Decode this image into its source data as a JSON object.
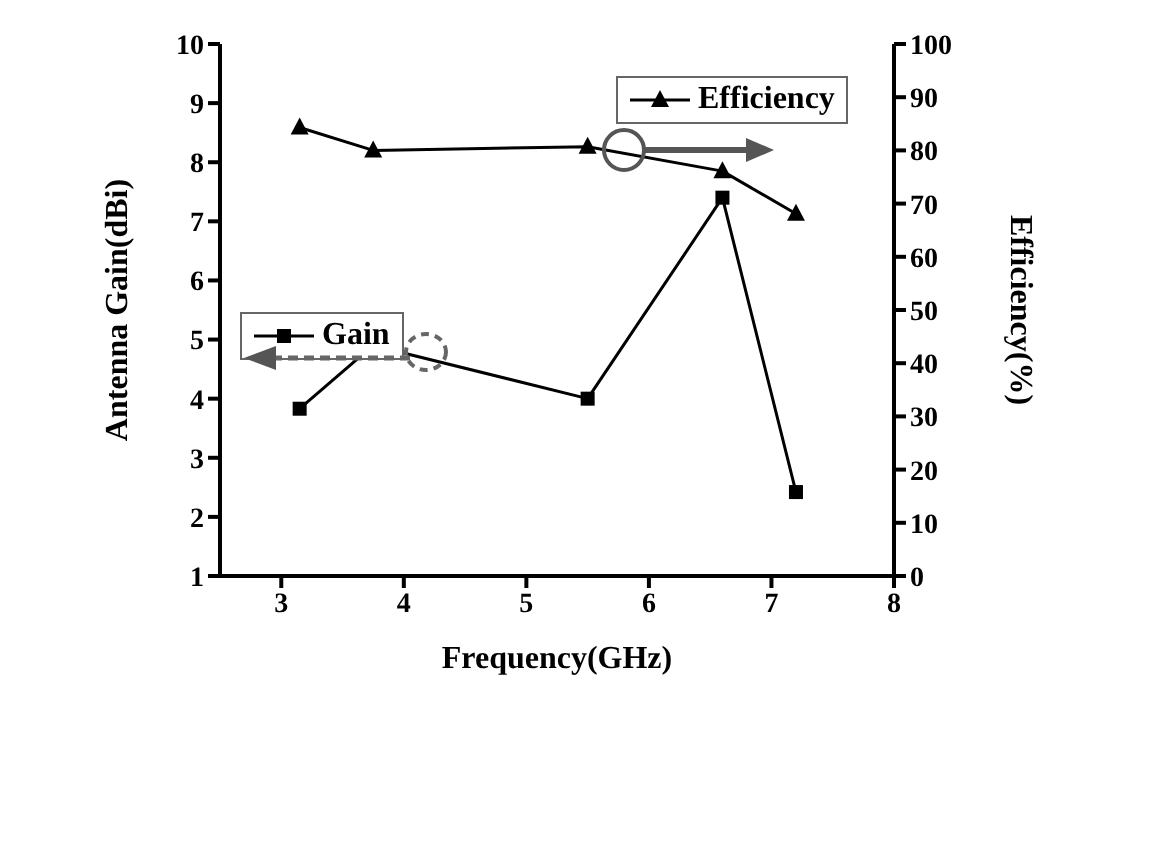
{
  "chart_data": {
    "type": "line",
    "xlabel": "Frequency(GHz)",
    "ylabel": "Antenna Gain(dBi)",
    "y2label": "Efficiency(%)",
    "x": [
      3.15,
      3.75,
      5.5,
      6.6,
      7.2
    ],
    "series": [
      {
        "name": "Gain",
        "color": "#000000",
        "marker": "square",
        "values": [
          3.83,
          4.9,
          4.0,
          7.4,
          2.42
        ]
      },
      {
        "name": "Efficiency",
        "color": "#000000",
        "marker": "triangle",
        "axis": "y2",
        "values": [
          84.3,
          80,
          80.7,
          76.1,
          68.1
        ]
      }
    ],
    "xlim": [
      2.5,
      8
    ],
    "xticks": [
      3,
      4,
      5,
      6,
      7,
      8
    ],
    "ylim": [
      1,
      10
    ],
    "yticks": [
      1,
      2,
      3,
      4,
      5,
      6,
      7,
      8,
      9,
      10
    ],
    "y2lim": [
      0,
      100
    ],
    "y2ticks": [
      0,
      10,
      20,
      30,
      40,
      50,
      60,
      70,
      80,
      90,
      100
    ],
    "grid": false,
    "legend": "top right",
    "line_style": "solid"
  }
}
